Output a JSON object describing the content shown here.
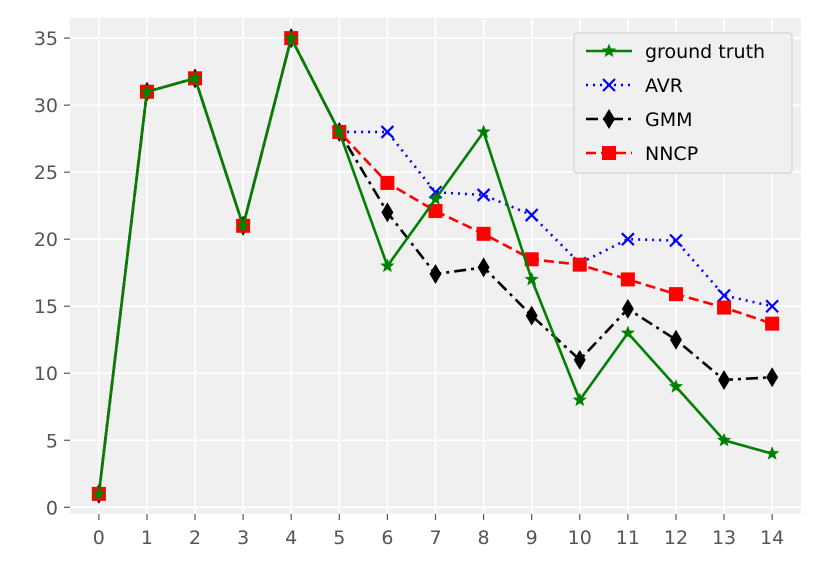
{
  "chart_data": {
    "type": "line",
    "title": "",
    "xlabel": "",
    "ylabel": "",
    "x": [
      0,
      1,
      2,
      3,
      4,
      5,
      6,
      7,
      8,
      9,
      10,
      11,
      12,
      13,
      14
    ],
    "xlim": [
      -0.6,
      14.6
    ],
    "ylim": [
      -0.5,
      36.5
    ],
    "xticks": [
      "0",
      "1",
      "2",
      "3",
      "4",
      "5",
      "6",
      "7",
      "8",
      "9",
      "10",
      "11",
      "12",
      "13",
      "14"
    ],
    "yticks": [
      "0",
      "5",
      "10",
      "15",
      "20",
      "25",
      "30",
      "35"
    ],
    "grid": true,
    "legend_position": "top-right",
    "background_color": "#f0f0f0",
    "grid_color": "#ffffff",
    "series": [
      {
        "name": "AVR",
        "color": "#0000ff",
        "line_style": "dotted",
        "marker": "x",
        "x": [
          0,
          1,
          2,
          3,
          4,
          5,
          6,
          7,
          8,
          9,
          10,
          11,
          12,
          13,
          14
        ],
        "values": [
          1,
          31,
          32,
          21,
          35,
          28,
          28,
          23.5,
          23.3,
          21.8,
          18.2,
          20,
          19.9,
          15.8,
          15
        ]
      },
      {
        "name": "GMM",
        "color": "#000000",
        "line_style": "dashdot",
        "marker": "diamond",
        "x": [
          0,
          1,
          2,
          3,
          4,
          5,
          6,
          7,
          8,
          9,
          10,
          11,
          12,
          13,
          14
        ],
        "values": [
          1,
          31,
          32,
          21,
          35,
          28,
          22,
          17.4,
          17.9,
          14.3,
          11,
          14.8,
          12.5,
          9.5,
          9.7
        ]
      },
      {
        "name": "NNCP",
        "color": "#ff0000",
        "line_style": "dashed",
        "marker": "square",
        "x": [
          0,
          1,
          2,
          3,
          4,
          5,
          6,
          7,
          8,
          9,
          10,
          11,
          12,
          13,
          14
        ],
        "values": [
          1,
          31,
          32,
          21,
          35,
          28,
          24.2,
          22.1,
          20.4,
          18.5,
          18.1,
          17,
          15.9,
          14.9,
          13.7
        ]
      },
      {
        "name": "ground truth",
        "color": "#008000",
        "line_style": "solid",
        "marker": "star",
        "x": [
          0,
          1,
          2,
          3,
          4,
          5,
          6,
          7,
          8,
          9,
          10,
          11,
          12,
          13,
          14
        ],
        "values": [
          1,
          31,
          32,
          21,
          35,
          28,
          18,
          23,
          28,
          17,
          8,
          13,
          9,
          5,
          4
        ]
      }
    ],
    "legend_order": [
      "ground truth",
      "AVR",
      "GMM",
      "NNCP"
    ]
  }
}
